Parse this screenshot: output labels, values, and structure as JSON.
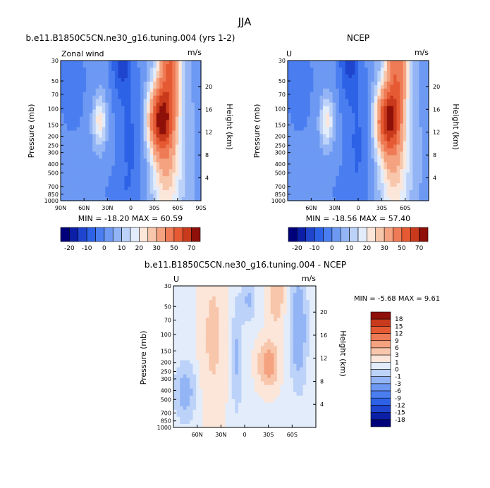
{
  "figure": {
    "title": "JJA"
  },
  "chart_data": [
    {
      "type": "heatmap",
      "panel": "model",
      "title": "b.e11.B1850C5CN.ne30_g16.tuning.004 (yrs 1-2)",
      "left_label": "Zonal wind",
      "units": "m/s",
      "ylabel": "Pressure (mb)",
      "ylabel_right": "Height (km)",
      "yticks": [
        "30",
        "50",
        "70",
        "100",
        "150",
        "200",
        "250",
        "300",
        "400",
        "500",
        "700",
        "850",
        "1000"
      ],
      "yticks_right": [
        "20",
        "16",
        "12",
        "8",
        "4"
      ],
      "xticks": [
        "90N",
        "60N",
        "30N",
        "0",
        "30S",
        "60S",
        "90S"
      ],
      "stats": "MIN = -18.20   MAX =  60.59",
      "colorbar_labels": [
        "-20",
        "-10",
        "0",
        "10",
        "20",
        "30",
        "50",
        "70"
      ]
    },
    {
      "type": "heatmap",
      "panel": "obs",
      "title": "NCEP",
      "left_label": "U",
      "units": "m/s",
      "ylabel": "Pressure (mb)",
      "ylabel_right": "Height (km)",
      "yticks": [
        "30",
        "50",
        "70",
        "100",
        "150",
        "200",
        "250",
        "300",
        "400",
        "500",
        "700",
        "850",
        "1000"
      ],
      "yticks_right": [
        "20",
        "16",
        "12",
        "8",
        "4"
      ],
      "xticks": [
        "60N",
        "30N",
        "0",
        "30S",
        "60S"
      ],
      "stats": "MIN = -18.56   MAX =  57.40",
      "colorbar_labels": [
        "-20",
        "-10",
        "0",
        "10",
        "20",
        "30",
        "50",
        "70"
      ]
    },
    {
      "type": "heatmap",
      "panel": "difference",
      "title": "b.e11.B1850C5CN.ne30_g16.tuning.004 - NCEP",
      "left_label": "U",
      "units": "m/s",
      "ylabel": "Pressure (mb)",
      "ylabel_right": "Height (km)",
      "yticks": [
        "30",
        "50",
        "70",
        "100",
        "150",
        "200",
        "250",
        "300",
        "400",
        "500",
        "700",
        "850",
        "1000"
      ],
      "yticks_right": [
        "20",
        "16",
        "12",
        "8",
        "4"
      ],
      "xticks": [
        "60N",
        "30N",
        "0",
        "30S",
        "60S"
      ],
      "stats": "MIN =    -5.68  MAX =    9.61",
      "colorbar_labels": [
        "18",
        "15",
        "12",
        "9",
        "6",
        "3",
        "1",
        "0",
        "-1",
        "-3",
        "-6",
        "-9",
        "-12",
        "-15",
        "-18"
      ]
    }
  ],
  "colors": {
    "diverging": [
      "#00007a",
      "#0a1fa6",
      "#1f45cf",
      "#2d62e6",
      "#4a7ef0",
      "#6d99f3",
      "#93b4f5",
      "#bcd2f8",
      "#e2ecfb",
      "#fbe6d9",
      "#f8c6ab",
      "#f4a280",
      "#ee7b55",
      "#e55a33",
      "#c93a1c",
      "#8e1008"
    ]
  }
}
